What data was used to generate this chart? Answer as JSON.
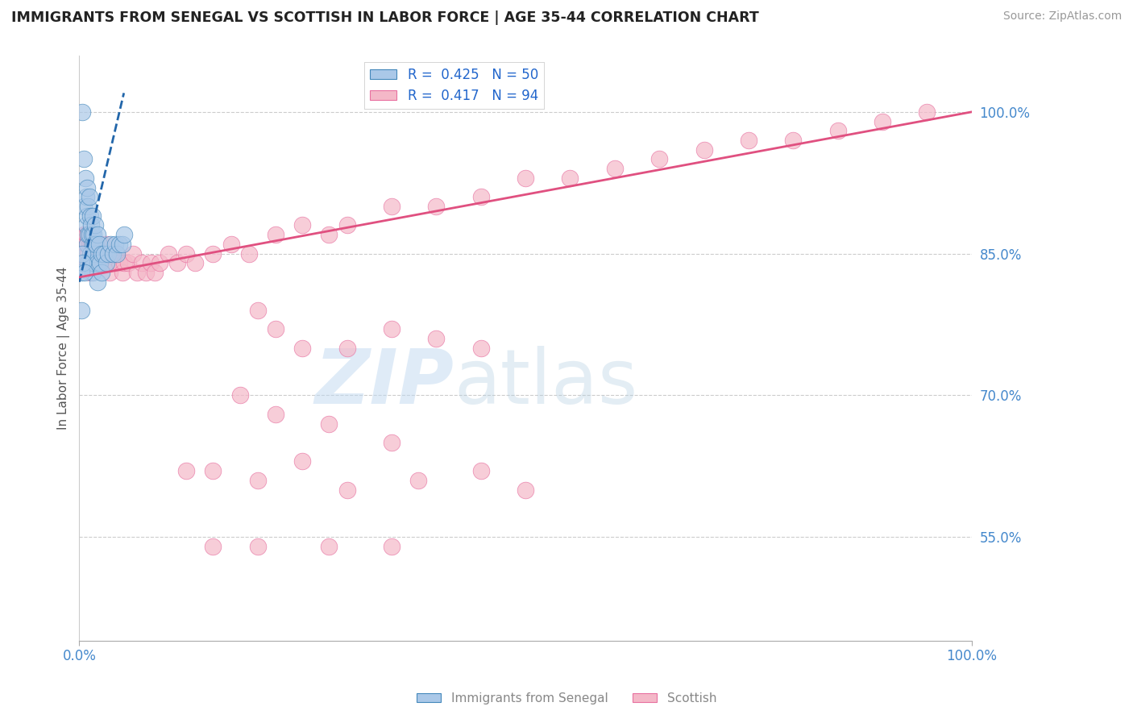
{
  "title": "IMMIGRANTS FROM SENEGAL VS SCOTTISH IN LABOR FORCE | AGE 35-44 CORRELATION CHART",
  "source": "Source: ZipAtlas.com",
  "ylabel": "In Labor Force | Age 35-44",
  "y_tick_labels": [
    "55.0%",
    "70.0%",
    "85.0%",
    "100.0%"
  ],
  "y_tick_values": [
    0.55,
    0.7,
    0.85,
    1.0
  ],
  "xlim": [
    0.0,
    1.0
  ],
  "ylim": [
    0.44,
    1.06
  ],
  "legend_entries": [
    {
      "label": "R =  0.425   N = 50",
      "color": "#a8c8e8"
    },
    {
      "label": "R =  0.417   N = 94",
      "color": "#f4b8c8"
    }
  ],
  "legend_bottom": [
    "Immigrants from Senegal",
    "Scottish"
  ],
  "blue_color": "#aac8e8",
  "pink_color": "#f4b8c8",
  "blue_edge": "#4488bb",
  "pink_edge": "#e870a0",
  "title_color": "#222222",
  "source_color": "#999999",
  "label_color": "#4488cc",
  "watermark_zip": "ZIP",
  "watermark_atlas": "atlas",
  "blue_trend_color": "#2266aa",
  "pink_trend_color": "#e05080",
  "blue_scatter_x": [
    0.003,
    0.005,
    0.005,
    0.007,
    0.008,
    0.008,
    0.009,
    0.009,
    0.009,
    0.01,
    0.01,
    0.01,
    0.011,
    0.011,
    0.012,
    0.012,
    0.013,
    0.013,
    0.014,
    0.015,
    0.015,
    0.015,
    0.016,
    0.016,
    0.017,
    0.018,
    0.018,
    0.019,
    0.02,
    0.02,
    0.02,
    0.022,
    0.023,
    0.025,
    0.025,
    0.028,
    0.03,
    0.032,
    0.035,
    0.038,
    0.04,
    0.042,
    0.045,
    0.048,
    0.05,
    0.002,
    0.003,
    0.004,
    0.006,
    0.002
  ],
  "blue_scatter_y": [
    1.0,
    0.95,
    0.9,
    0.93,
    0.91,
    0.88,
    0.92,
    0.89,
    0.86,
    0.9,
    0.87,
    0.84,
    0.91,
    0.87,
    0.89,
    0.85,
    0.88,
    0.84,
    0.87,
    0.89,
    0.86,
    0.83,
    0.87,
    0.84,
    0.86,
    0.88,
    0.85,
    0.86,
    0.87,
    0.84,
    0.82,
    0.86,
    0.84,
    0.85,
    0.83,
    0.85,
    0.84,
    0.85,
    0.86,
    0.85,
    0.86,
    0.85,
    0.86,
    0.86,
    0.87,
    0.83,
    0.85,
    0.84,
    0.83,
    0.79
  ],
  "pink_scatter_x": [
    0.005,
    0.007,
    0.008,
    0.009,
    0.009,
    0.01,
    0.01,
    0.011,
    0.011,
    0.012,
    0.012,
    0.013,
    0.014,
    0.015,
    0.015,
    0.016,
    0.017,
    0.018,
    0.019,
    0.02,
    0.02,
    0.021,
    0.022,
    0.023,
    0.025,
    0.025,
    0.026,
    0.028,
    0.03,
    0.03,
    0.032,
    0.034,
    0.035,
    0.038,
    0.04,
    0.042,
    0.045,
    0.048,
    0.05,
    0.055,
    0.06,
    0.065,
    0.07,
    0.075,
    0.08,
    0.085,
    0.09,
    0.1,
    0.11,
    0.12,
    0.13,
    0.15,
    0.17,
    0.19,
    0.22,
    0.25,
    0.28,
    0.3,
    0.35,
    0.4,
    0.45,
    0.5,
    0.55,
    0.6,
    0.65,
    0.7,
    0.75,
    0.8,
    0.85,
    0.9,
    0.95,
    0.2,
    0.22,
    0.25,
    0.3,
    0.35,
    0.4,
    0.45,
    0.18,
    0.22,
    0.28,
    0.35,
    0.12,
    0.15,
    0.2,
    0.25,
    0.3,
    0.38,
    0.45,
    0.5,
    0.15,
    0.2,
    0.28,
    0.35
  ],
  "pink_scatter_y": [
    0.87,
    0.86,
    0.87,
    0.86,
    0.84,
    0.87,
    0.85,
    0.86,
    0.84,
    0.85,
    0.83,
    0.86,
    0.85,
    0.86,
    0.84,
    0.85,
    0.84,
    0.86,
    0.85,
    0.86,
    0.84,
    0.85,
    0.84,
    0.85,
    0.86,
    0.84,
    0.85,
    0.84,
    0.86,
    0.84,
    0.85,
    0.83,
    0.84,
    0.85,
    0.84,
    0.85,
    0.84,
    0.83,
    0.84,
    0.84,
    0.85,
    0.83,
    0.84,
    0.83,
    0.84,
    0.83,
    0.84,
    0.85,
    0.84,
    0.85,
    0.84,
    0.85,
    0.86,
    0.85,
    0.87,
    0.88,
    0.87,
    0.88,
    0.9,
    0.9,
    0.91,
    0.93,
    0.93,
    0.94,
    0.95,
    0.96,
    0.97,
    0.97,
    0.98,
    0.99,
    1.0,
    0.79,
    0.77,
    0.75,
    0.75,
    0.77,
    0.76,
    0.75,
    0.7,
    0.68,
    0.67,
    0.65,
    0.62,
    0.62,
    0.61,
    0.63,
    0.6,
    0.61,
    0.62,
    0.6,
    0.54,
    0.54,
    0.54,
    0.54
  ],
  "blue_trend_x": [
    0.0,
    0.05
  ],
  "blue_trend_y": [
    0.82,
    1.02
  ],
  "pink_trend_x": [
    0.0,
    1.0
  ],
  "pink_trend_y": [
    0.825,
    1.0
  ]
}
